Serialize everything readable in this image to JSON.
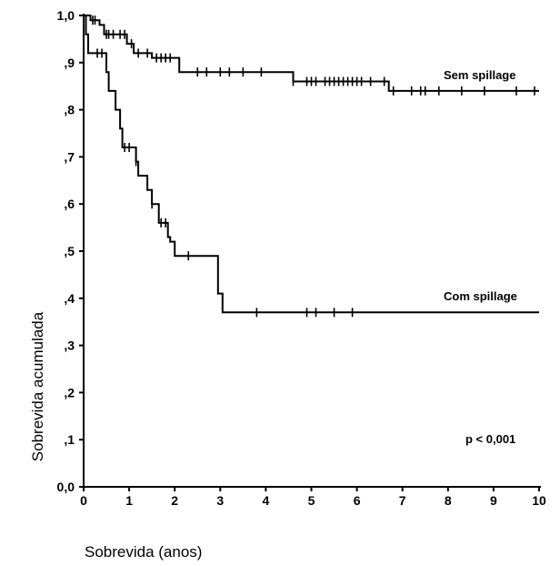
{
  "chart_data": {
    "type": "line",
    "title": "",
    "xlabel": "Sobrevida (anos)",
    "ylabel": "Sobrevida acumulada",
    "xlim": [
      0,
      10
    ],
    "ylim": [
      0,
      1
    ],
    "grid": false,
    "x_ticks": [
      "0",
      "1",
      "2",
      "3",
      "4",
      "5",
      "6",
      "7",
      "8",
      "9",
      "10"
    ],
    "y_ticks": [
      "0,0",
      ",1",
      ",2",
      ",3",
      ",4",
      ",5",
      ",6",
      ",7",
      ",8",
      ",9",
      "1,0"
    ],
    "annotation": "p < 0,001",
    "series": [
      {
        "name": "Sem spillage",
        "step_points": [
          [
            0,
            1.0
          ],
          [
            0.15,
            0.99
          ],
          [
            0.35,
            0.98
          ],
          [
            0.45,
            0.96
          ],
          [
            0.95,
            0.94
          ],
          [
            1.1,
            0.92
          ],
          [
            1.5,
            0.91
          ],
          [
            2.1,
            0.88
          ],
          [
            4.6,
            0.86
          ],
          [
            6.7,
            0.84
          ],
          [
            10.0,
            0.84
          ]
        ],
        "censored": [
          [
            0.2,
            0.99
          ],
          [
            0.25,
            0.99
          ],
          [
            0.5,
            0.96
          ],
          [
            0.55,
            0.96
          ],
          [
            0.65,
            0.96
          ],
          [
            0.8,
            0.96
          ],
          [
            0.9,
            0.96
          ],
          [
            1.05,
            0.94
          ],
          [
            1.2,
            0.92
          ],
          [
            1.4,
            0.92
          ],
          [
            1.6,
            0.91
          ],
          [
            1.7,
            0.91
          ],
          [
            1.8,
            0.91
          ],
          [
            1.9,
            0.91
          ],
          [
            2.5,
            0.88
          ],
          [
            2.7,
            0.88
          ],
          [
            3.0,
            0.88
          ],
          [
            3.2,
            0.88
          ],
          [
            3.5,
            0.88
          ],
          [
            3.9,
            0.88
          ],
          [
            4.6,
            0.88
          ],
          [
            4.9,
            0.86
          ],
          [
            5.0,
            0.86
          ],
          [
            5.1,
            0.86
          ],
          [
            5.3,
            0.86
          ],
          [
            5.4,
            0.86
          ],
          [
            5.5,
            0.86
          ],
          [
            5.6,
            0.86
          ],
          [
            5.7,
            0.86
          ],
          [
            5.8,
            0.86
          ],
          [
            5.9,
            0.86
          ],
          [
            6.0,
            0.86
          ],
          [
            6.1,
            0.86
          ],
          [
            6.3,
            0.86
          ],
          [
            6.6,
            0.86
          ],
          [
            6.8,
            0.84
          ],
          [
            7.2,
            0.84
          ],
          [
            7.4,
            0.84
          ],
          [
            7.5,
            0.84
          ],
          [
            7.8,
            0.84
          ],
          [
            8.3,
            0.84
          ],
          [
            8.8,
            0.84
          ],
          [
            9.5,
            0.84
          ],
          [
            9.9,
            0.84
          ]
        ]
      },
      {
        "name": "Com spillage",
        "step_points": [
          [
            0,
            1.0
          ],
          [
            0.05,
            0.96
          ],
          [
            0.1,
            0.92
          ],
          [
            0.5,
            0.88
          ],
          [
            0.55,
            0.84
          ],
          [
            0.7,
            0.8
          ],
          [
            0.8,
            0.76
          ],
          [
            0.85,
            0.72
          ],
          [
            1.15,
            0.69
          ],
          [
            1.2,
            0.66
          ],
          [
            1.4,
            0.63
          ],
          [
            1.5,
            0.6
          ],
          [
            1.65,
            0.56
          ],
          [
            1.85,
            0.53
          ],
          [
            1.9,
            0.52
          ],
          [
            2.0,
            0.49
          ],
          [
            2.95,
            0.41
          ],
          [
            3.05,
            0.37
          ],
          [
            10.0,
            0.37
          ]
        ],
        "censored": [
          [
            0.3,
            0.92
          ],
          [
            0.4,
            0.92
          ],
          [
            0.9,
            0.72
          ],
          [
            1.0,
            0.72
          ],
          [
            1.15,
            0.7
          ],
          [
            1.5,
            0.6
          ],
          [
            1.7,
            0.57
          ],
          [
            1.8,
            0.57
          ],
          [
            2.3,
            0.49
          ],
          [
            3.8,
            0.37
          ],
          [
            4.9,
            0.37
          ],
          [
            5.1,
            0.37
          ],
          [
            5.5,
            0.37
          ],
          [
            5.9,
            0.37
          ]
        ]
      }
    ]
  }
}
